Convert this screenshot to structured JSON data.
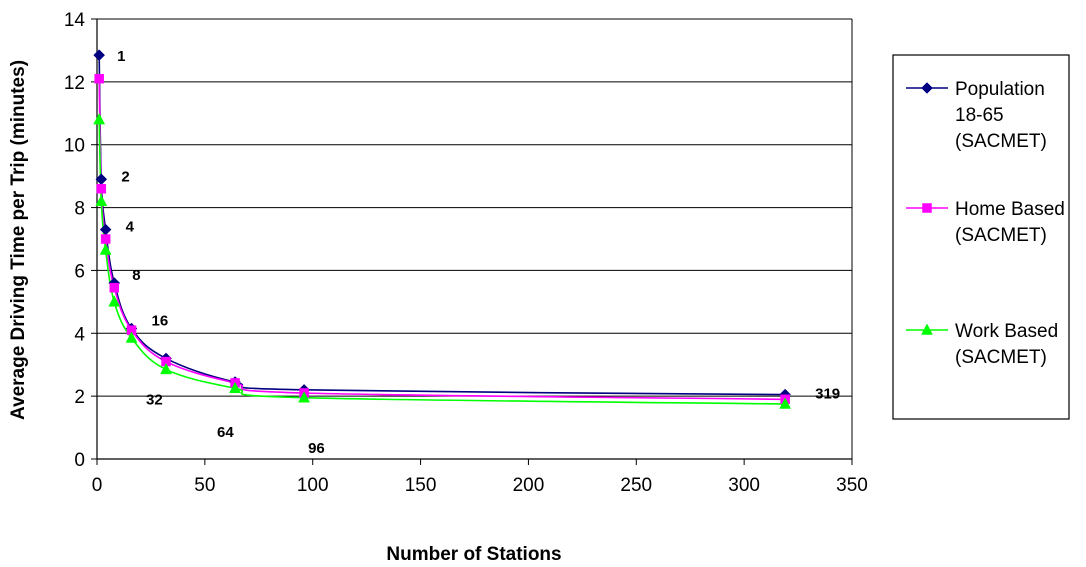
{
  "chart_data": {
    "type": "line",
    "title": "",
    "xlabel": "Number of Stations",
    "ylabel": "Average Driving Time per Trip (minutes)",
    "xlim": [
      0,
      350
    ],
    "ylim": [
      0,
      14
    ],
    "x_ticks": [
      "0",
      "50",
      "100",
      "150",
      "200",
      "250",
      "300",
      "350"
    ],
    "y_ticks": [
      "0",
      "2",
      "4",
      "6",
      "8",
      "10",
      "12",
      "14"
    ],
    "grid": "horizontal",
    "legend_position": "right",
    "x": [
      1,
      2,
      4,
      8,
      16,
      32,
      64,
      96,
      319
    ],
    "series": [
      {
        "name": "Population 18-65 (SACMET)",
        "legend_lines": [
          "Population",
          "18-65",
          "(SACMET)"
        ],
        "color": "#000080",
        "marker": "diamond",
        "values": [
          12.85,
          8.9,
          7.3,
          5.6,
          4.15,
          3.2,
          2.45,
          2.2,
          2.05
        ]
      },
      {
        "name": "Home Based (SACMET)",
        "legend_lines": [
          "Home Based",
          "(SACMET)"
        ],
        "color": "#ff00ff",
        "marker": "square",
        "values": [
          12.1,
          8.6,
          7.0,
          5.45,
          4.1,
          3.1,
          2.42,
          2.1,
          1.9
        ]
      },
      {
        "name": "Work Based (SACMET)",
        "legend_lines": [
          "Work Based",
          "(SACMET)"
        ],
        "color": "#00ff00",
        "marker": "triangle",
        "values": [
          10.8,
          8.2,
          6.65,
          5.0,
          3.85,
          2.85,
          2.25,
          1.95,
          1.75
        ]
      }
    ],
    "data_labels": [
      "1",
      "2",
      "4",
      "8",
      "16",
      "32",
      "64",
      "96",
      "319"
    ]
  }
}
